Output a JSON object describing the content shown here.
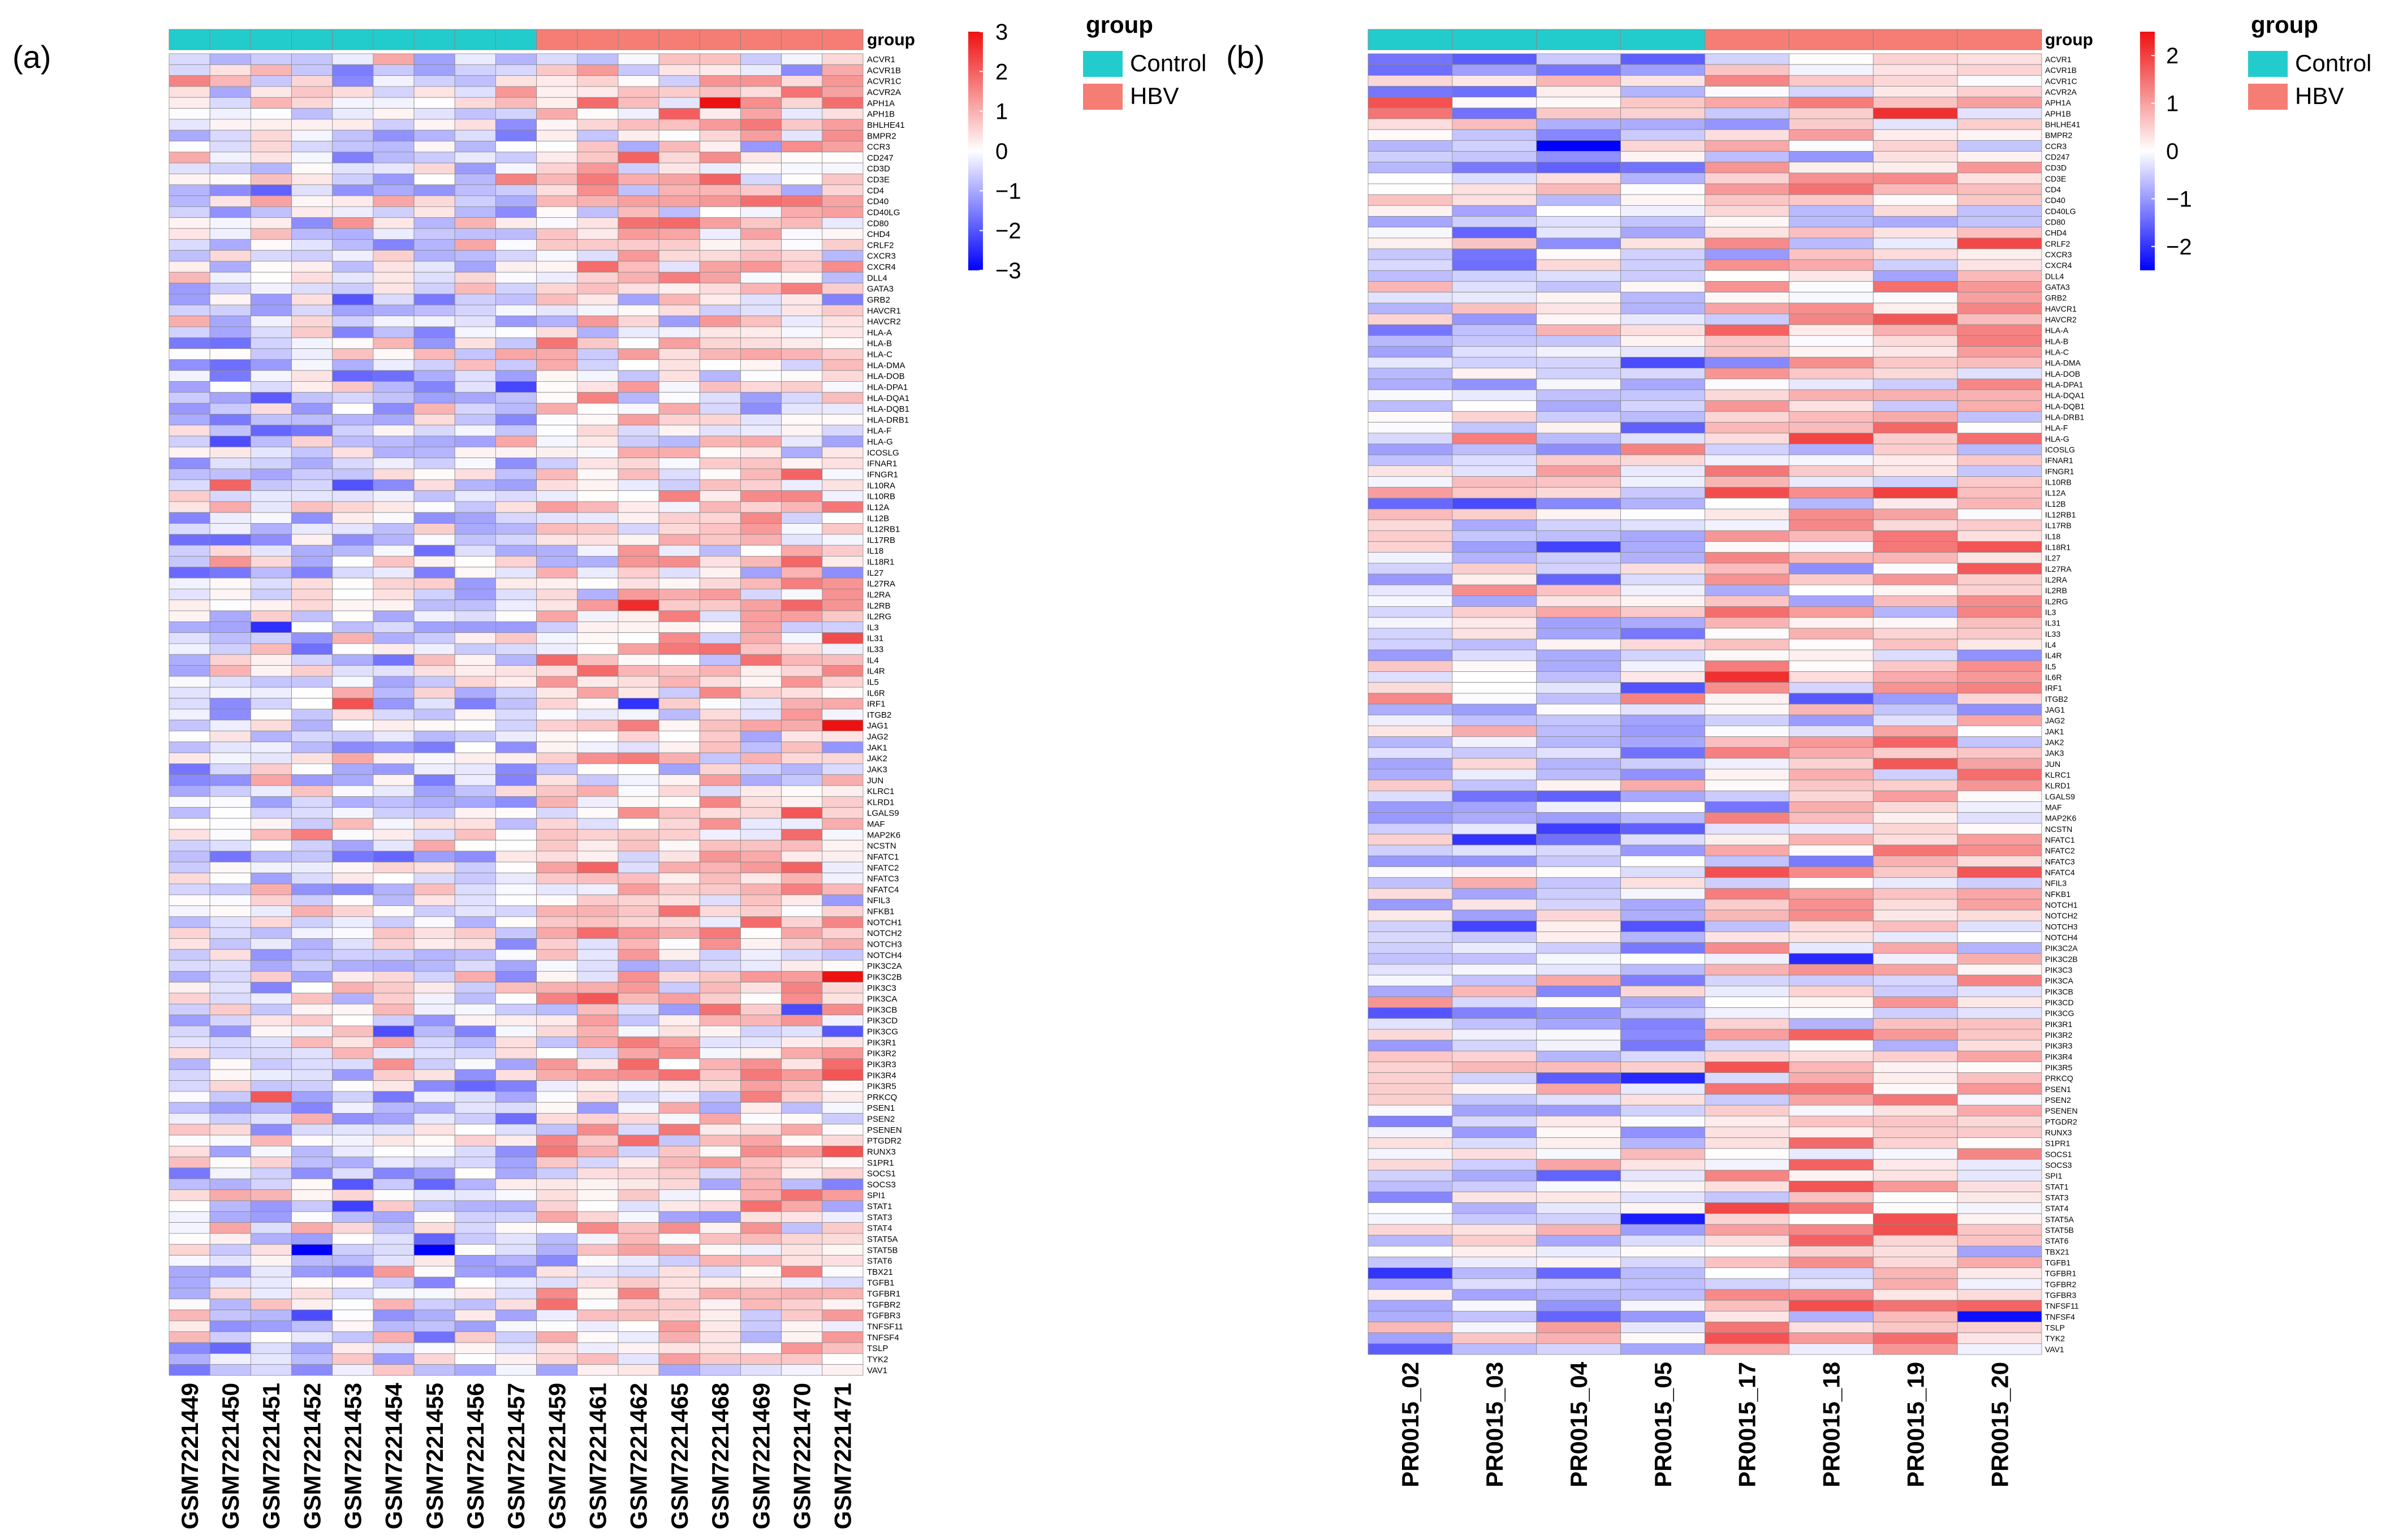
{
  "colors": {
    "low": "#0000ff",
    "mid": "#ffffff",
    "high": "#ee1111",
    "control": "#23cccc",
    "hbv": "#f57d74",
    "grid": "#888888"
  },
  "legend": {
    "title": "group",
    "items": [
      {
        "label": "Control",
        "color": "#23cccc"
      },
      {
        "label": "HBV",
        "color": "#f57d74"
      }
    ]
  },
  "chart_data": [
    {
      "type": "heatmap",
      "panel_label": "(a)",
      "group_label": "group",
      "seed": 17,
      "samples": [
        "GSM7221449",
        "GSM7221450",
        "GSM7221451",
        "GSM7221452",
        "GSM7221453",
        "GSM7221454",
        "GSM7221455",
        "GSM7221456",
        "GSM7221457",
        "GSM7221459",
        "GSM7221461",
        "GSM7221462",
        "GSM7221465",
        "GSM7221468",
        "GSM7221469",
        "GSM7221470",
        "GSM7221471"
      ],
      "sample_groups": [
        "Control",
        "Control",
        "Control",
        "Control",
        "Control",
        "Control",
        "Control",
        "Control",
        "Control",
        "HBV",
        "HBV",
        "HBV",
        "HBV",
        "HBV",
        "HBV",
        "HBV",
        "HBV"
      ],
      "genes": [
        "ACVR1",
        "ACVR1B",
        "ACVR1C",
        "ACVR2A",
        "APH1A",
        "APH1B",
        "BHLHE41",
        "BMPR2",
        "CCR3",
        "CD247",
        "CD3D",
        "CD3E",
        "CD4",
        "CD40",
        "CD40LG",
        "CD80",
        "CHD4",
        "CRLF2",
        "CXCR3",
        "CXCR4",
        "DLL4",
        "GATA3",
        "GRB2",
        "HAVCR1",
        "HAVCR2",
        "HLA-A",
        "HLA-B",
        "HLA-C",
        "HLA-DMA",
        "HLA-DOB",
        "HLA-DPA1",
        "HLA-DQA1",
        "HLA-DQB1",
        "HLA-DRB1",
        "HLA-F",
        "HLA-G",
        "ICOSLG",
        "IFNAR1",
        "IFNGR1",
        "IL10RA",
        "IL10RB",
        "IL12A",
        "IL12B",
        "IL12RB1",
        "IL17RB",
        "IL18",
        "IL18R1",
        "IL27",
        "IL27RA",
        "IL2RA",
        "IL2RB",
        "IL2RG",
        "IL3",
        "IL31",
        "IL33",
        "IL4",
        "IL4R",
        "IL5",
        "IL6R",
        "IRF1",
        "ITGB2",
        "JAG1",
        "JAG2",
        "JAK1",
        "JAK2",
        "JAK3",
        "JUN",
        "KLRC1",
        "KLRD1",
        "LGALS9",
        "MAF",
        "MAP2K6",
        "NCSTN",
        "NFATC1",
        "NFATC2",
        "NFATC3",
        "NFATC4",
        "NFIL3",
        "NFKB1",
        "NOTCH1",
        "NOTCH2",
        "NOTCH3",
        "NOTCH4",
        "PIK3C2A",
        "PIK3C2B",
        "PIK3C3",
        "PIK3CA",
        "PIK3CB",
        "PIK3CD",
        "PIK3CG",
        "PIK3R1",
        "PIK3R2",
        "PIK3R3",
        "PIK3R4",
        "PIK3R5",
        "PRKCQ",
        "PSEN1",
        "PSEN2",
        "PSENEN",
        "PTGDR2",
        "RUNX3",
        "S1PR1",
        "SOCS1",
        "SOCS3",
        "SPI1",
        "STAT1",
        "STAT3",
        "STAT4",
        "STAT5A",
        "STAT5B",
        "STAT6",
        "TBX21",
        "TGFB1",
        "TGFBR1",
        "TGFBR2",
        "TGFBR3",
        "TNFSF11",
        "TNFSF4",
        "TSLP",
        "TYK2",
        "VAV1"
      ],
      "value_range": [
        -3,
        3
      ],
      "colorbar_ticks": [
        "3",
        "2",
        "1",
        "0",
        "−1",
        "−2",
        "−3"
      ],
      "colorbar_tick_values": [
        3,
        2,
        1,
        0,
        -1,
        -2,
        -3
      ]
    },
    {
      "type": "heatmap",
      "panel_label": "(b)",
      "group_label": "group",
      "seed": 53,
      "samples": [
        "PR0015_02",
        "PR0015_03",
        "PR0015_04",
        "PR0015_05",
        "PR0015_17",
        "PR0015_18",
        "PR0015_19",
        "PR0015_20"
      ],
      "sample_groups": [
        "Control",
        "Control",
        "Control",
        "Control",
        "HBV",
        "HBV",
        "HBV",
        "HBV"
      ],
      "genes": [
        "ACVR1",
        "ACVR1B",
        "ACVR1C",
        "ACVR2A",
        "APH1A",
        "APH1B",
        "BHLHE41",
        "BMPR2",
        "CCR3",
        "CD247",
        "CD3D",
        "CD3E",
        "CD4",
        "CD40",
        "CD40LG",
        "CD80",
        "CHD4",
        "CRLF2",
        "CXCR3",
        "CXCR4",
        "DLL4",
        "GATA3",
        "GRB2",
        "HAVCR1",
        "HAVCR2",
        "HLA-A",
        "HLA-B",
        "HLA-C",
        "HLA-DMA",
        "HLA-DOB",
        "HLA-DPA1",
        "HLA-DQA1",
        "HLA-DQB1",
        "HLA-DRB1",
        "HLA-F",
        "HLA-G",
        "ICOSLG",
        "IFNAR1",
        "IFNGR1",
        "IL10RB",
        "IL12A",
        "IL12B",
        "IL12RB1",
        "IL17RB",
        "IL18",
        "IL18R1",
        "IL27",
        "IL27RA",
        "IL2RA",
        "IL2RB",
        "IL2RG",
        "IL3",
        "IL31",
        "IL33",
        "IL4",
        "IL4R",
        "IL5",
        "IL6R",
        "IRF1",
        "ITGB2",
        "JAG1",
        "JAG2",
        "JAK1",
        "JAK2",
        "JAK3",
        "JUN",
        "KLRC1",
        "KLRD1",
        "LGALS9",
        "MAF",
        "MAP2K6",
        "NCSTN",
        "NFATC1",
        "NFATC2",
        "NFATC3",
        "NFATC4",
        "NFIL3",
        "NFKB1",
        "NOTCH1",
        "NOTCH2",
        "NOTCH3",
        "NOTCH4",
        "PIK3C2A",
        "PIK3C2B",
        "PIK3C3",
        "PIK3CA",
        "PIK3CB",
        "PIK3CD",
        "PIK3CG",
        "PIK3R1",
        "PIK3R2",
        "PIK3R3",
        "PIK3R4",
        "PIK3R5",
        "PRKCQ",
        "PSEN1",
        "PSEN2",
        "PSENEN",
        "PTGDR2",
        "RUNX3",
        "S1PR1",
        "SOCS1",
        "SOCS3",
        "SPI1",
        "STAT1",
        "STAT3",
        "STAT4",
        "STAT5A",
        "STAT5B",
        "STAT6",
        "TBX21",
        "TGFB1",
        "TGFBR1",
        "TGFBR2",
        "TGFBR3",
        "TNFSF11",
        "TNFSF4",
        "TSLP",
        "TYK2",
        "VAV1"
      ],
      "value_range": [
        -2.5,
        2.5
      ],
      "colorbar_ticks": [
        "2",
        "1",
        "0",
        "−1",
        "−2"
      ],
      "colorbar_tick_values": [
        2,
        1,
        0,
        -1,
        -2
      ]
    }
  ]
}
